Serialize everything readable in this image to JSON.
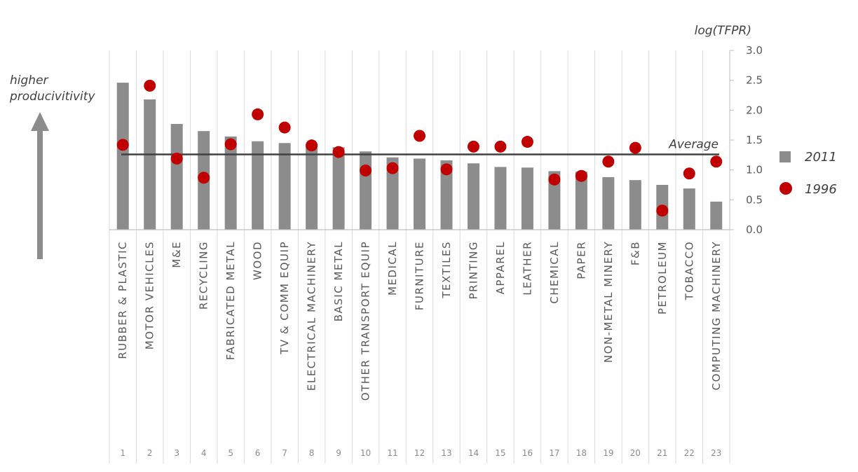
{
  "chart_data": {
    "type": "bar",
    "ylabel": "log(TFPR)",
    "ylim": [
      0,
      3.0
    ],
    "yticks": [
      "0.0",
      "0.5",
      "1.0",
      "1.5",
      "2.0",
      "2.5",
      "3.0"
    ],
    "categories": [
      "RUBBER & PLASTIC",
      "MOTOR VEHICLES",
      "M&E",
      "RECYCLING",
      "FABRICATED METAL",
      "WOOD",
      "TV & COMM EQUIP",
      "ELECTRICAL MACHINERY",
      "BASIC METAL",
      "OTHER TRANSPORT EQUIP",
      "MEDICAL",
      "FURNITURE",
      "TEXTILES",
      "PRINTING",
      "APPAREL",
      "LEATHER",
      "CHEMICAL",
      "PAPER",
      "NON-METAL MINERY",
      "F&B",
      "PETROLEUM",
      "TOBACCO",
      "COMPUTING MACHINERY"
    ],
    "numbers": [
      "1",
      "2",
      "3",
      "4",
      "5",
      "6",
      "7",
      "8",
      "9",
      "10",
      "11",
      "12",
      "13",
      "14",
      "15",
      "16",
      "17",
      "18",
      "19",
      "20",
      "21",
      "22",
      "23"
    ],
    "series": [
      {
        "name": "2011",
        "type": "bar",
        "color": "#8c8c8c",
        "values": [
          2.46,
          2.18,
          1.77,
          1.65,
          1.56,
          1.48,
          1.45,
          1.41,
          1.38,
          1.31,
          1.21,
          1.19,
          1.16,
          1.11,
          1.05,
          1.04,
          0.98,
          0.97,
          0.88,
          0.83,
          0.75,
          0.69,
          0.47
        ]
      },
      {
        "name": "1996",
        "type": "scatter",
        "color": "#c00000",
        "values": [
          1.42,
          2.41,
          1.19,
          0.87,
          1.43,
          1.93,
          1.71,
          1.41,
          1.3,
          0.99,
          1.03,
          1.57,
          1.01,
          1.39,
          1.39,
          1.47,
          0.84,
          0.9,
          1.14,
          1.37,
          0.32,
          0.94,
          1.14
        ]
      }
    ],
    "average": {
      "label": "Average",
      "value": 1.26
    },
    "annotation": "higher producivitivity",
    "legend": "right"
  },
  "annotation_lines": [
    "higher",
    "producivitivity"
  ]
}
